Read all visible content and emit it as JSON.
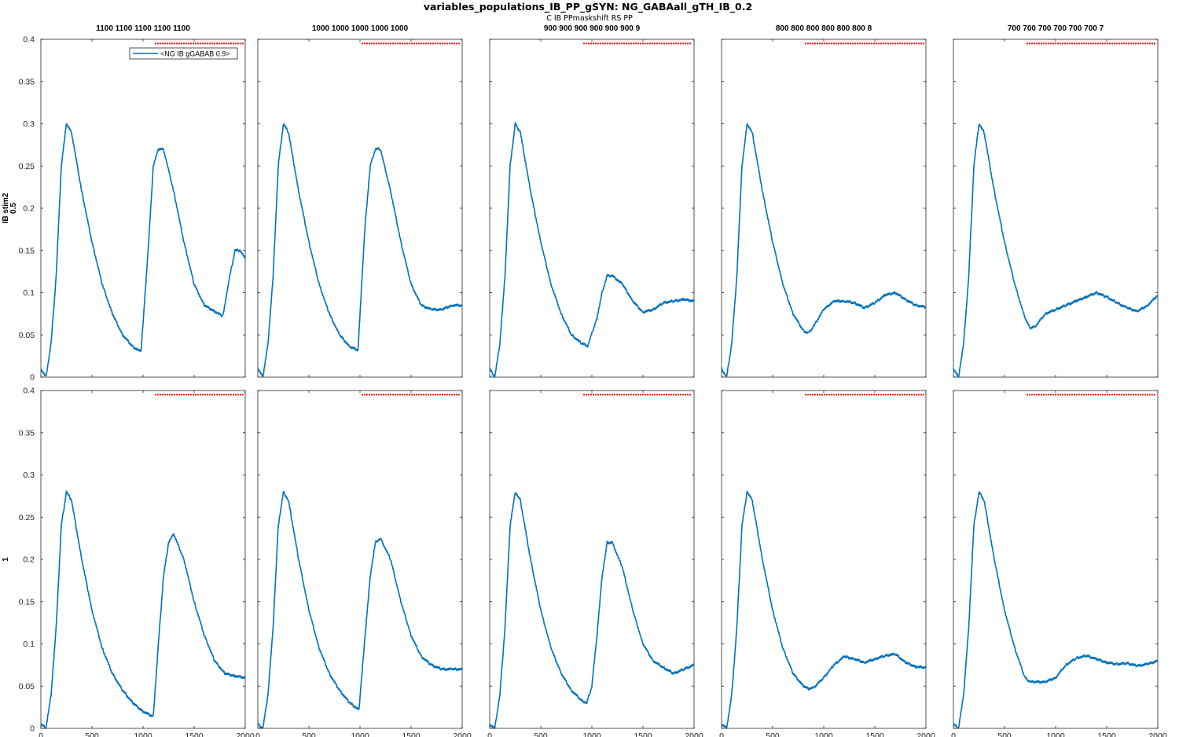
{
  "figure": {
    "title": "variables_populations_IB_PP_gSYN: NG_GABAall_gTH_IB_0.2",
    "subtitle": "C IB PPmaskshift RS PP",
    "row_labels": [
      [
        "IB stim2",
        "0.5"
      ],
      [
        "1"
      ]
    ],
    "column_titles": [
      "1100 1100 1100 1100 1100",
      "1000 1000 1000 1000 1000",
      "900 900 900 900 900 900 9",
      "800 800 800 800 800 800 8",
      "700 700 700 700 700 700 7"
    ],
    "legend_label": "<NG IB gGABAB 0.9>",
    "colors": {
      "line": "#0072bd",
      "marker": "#ff0000",
      "axis": "#262626"
    }
  },
  "chart_data": [
    {
      "type": "line",
      "row": 0,
      "col": 0,
      "title": "1100 1100 1100 1100 1100",
      "ylabel": "IB stim2 0.5",
      "xlim": [
        0,
        2000
      ],
      "ylim": [
        0,
        0.4
      ],
      "legend": "top-right",
      "marker_band": {
        "y": 0.395,
        "x_start": 1100,
        "x_end": 2000
      },
      "series": [
        {
          "name": "<NG IB gGABAB 0.9>",
          "x": [
            0,
            50,
            100,
            150,
            200,
            250,
            300,
            400,
            500,
            600,
            700,
            800,
            900,
            980,
            1050,
            1100,
            1150,
            1200,
            1300,
            1400,
            1500,
            1600,
            1700,
            1780,
            1850,
            1900,
            1950,
            2000
          ],
          "y": [
            0.01,
            0,
            0.04,
            0.12,
            0.25,
            0.3,
            0.29,
            0.22,
            0.16,
            0.11,
            0.075,
            0.05,
            0.036,
            0.03,
            0.15,
            0.25,
            0.27,
            0.27,
            0.22,
            0.16,
            0.11,
            0.085,
            0.078,
            0.072,
            0.12,
            0.15,
            0.15,
            0.14
          ]
        }
      ]
    },
    {
      "type": "line",
      "row": 0,
      "col": 1,
      "title": "1000 1000 1000 1000 1000",
      "xlim": [
        0,
        2000
      ],
      "ylim": [
        0,
        0.4
      ],
      "marker_band": {
        "y": 0.395,
        "x_start": 1000,
        "x_end": 2000
      },
      "series": [
        {
          "x": [
            0,
            50,
            100,
            150,
            200,
            250,
            300,
            400,
            500,
            600,
            700,
            800,
            900,
            980,
            1050,
            1100,
            1150,
            1200,
            1300,
            1400,
            1500,
            1600,
            1700,
            1800,
            1900,
            2000
          ],
          "y": [
            0.01,
            0,
            0.04,
            0.12,
            0.25,
            0.3,
            0.29,
            0.22,
            0.16,
            0.11,
            0.075,
            0.05,
            0.036,
            0.032,
            0.18,
            0.25,
            0.27,
            0.27,
            0.22,
            0.16,
            0.11,
            0.085,
            0.08,
            0.08,
            0.085,
            0.085
          ]
        }
      ]
    },
    {
      "type": "line",
      "row": 0,
      "col": 2,
      "title": "900 900 900 900 900 900 9",
      "xlim": [
        0,
        2000
      ],
      "ylim": [
        0,
        0.4
      ],
      "marker_band": {
        "y": 0.395,
        "x_start": 900,
        "x_end": 2000
      },
      "series": [
        {
          "x": [
            0,
            50,
            100,
            150,
            200,
            250,
            300,
            400,
            500,
            600,
            700,
            800,
            900,
            960,
            1050,
            1100,
            1150,
            1200,
            1300,
            1400,
            1500,
            1600,
            1700,
            1800,
            1900,
            2000
          ],
          "y": [
            0.01,
            0,
            0.04,
            0.12,
            0.25,
            0.3,
            0.29,
            0.22,
            0.16,
            0.11,
            0.075,
            0.05,
            0.04,
            0.037,
            0.07,
            0.1,
            0.12,
            0.12,
            0.11,
            0.09,
            0.077,
            0.08,
            0.088,
            0.09,
            0.092,
            0.09
          ]
        }
      ]
    },
    {
      "type": "line",
      "row": 0,
      "col": 3,
      "title": "800 800 800 800 800 800 8",
      "xlim": [
        0,
        2000
      ],
      "ylim": [
        0,
        0.4
      ],
      "marker_band": {
        "y": 0.395,
        "x_start": 800,
        "x_end": 2000
      },
      "series": [
        {
          "x": [
            0,
            50,
            100,
            150,
            200,
            250,
            300,
            400,
            500,
            600,
            700,
            800,
            850,
            900,
            1000,
            1100,
            1200,
            1300,
            1400,
            1500,
            1600,
            1700,
            1800,
            1900,
            2000
          ],
          "y": [
            0.01,
            0,
            0.04,
            0.12,
            0.25,
            0.3,
            0.29,
            0.22,
            0.16,
            0.11,
            0.075,
            0.055,
            0.052,
            0.06,
            0.08,
            0.09,
            0.09,
            0.088,
            0.082,
            0.088,
            0.097,
            0.1,
            0.092,
            0.085,
            0.083
          ]
        }
      ]
    },
    {
      "type": "line",
      "row": 0,
      "col": 4,
      "title": "700 700 700 700 700 700 7",
      "xlim": [
        0,
        2000
      ],
      "ylim": [
        0,
        0.4
      ],
      "marker_band": {
        "y": 0.395,
        "x_start": 700,
        "x_end": 2000
      },
      "series": [
        {
          "x": [
            0,
            50,
            100,
            150,
            200,
            250,
            300,
            400,
            500,
            600,
            700,
            750,
            800,
            900,
            1000,
            1100,
            1200,
            1300,
            1400,
            1500,
            1600,
            1700,
            1800,
            1900,
            2000
          ],
          "y": [
            0.01,
            0,
            0.04,
            0.12,
            0.25,
            0.3,
            0.29,
            0.22,
            0.16,
            0.11,
            0.07,
            0.058,
            0.06,
            0.075,
            0.08,
            0.085,
            0.09,
            0.095,
            0.1,
            0.095,
            0.088,
            0.082,
            0.078,
            0.085,
            0.097
          ]
        }
      ]
    },
    {
      "type": "line",
      "row": 1,
      "col": 0,
      "ylabel": "1",
      "xlim": [
        0,
        2000
      ],
      "ylim": [
        0,
        0.4
      ],
      "marker_band": {
        "y": 0.395,
        "x_start": 1100,
        "x_end": 2000
      },
      "series": [
        {
          "x": [
            0,
            50,
            100,
            150,
            200,
            250,
            300,
            400,
            500,
            600,
            700,
            800,
            900,
            1000,
            1100,
            1150,
            1200,
            1250,
            1300,
            1400,
            1500,
            1600,
            1700,
            1800,
            1900,
            2000
          ],
          "y": [
            0.005,
            0,
            0.04,
            0.12,
            0.24,
            0.28,
            0.27,
            0.2,
            0.14,
            0.095,
            0.065,
            0.045,
            0.03,
            0.02,
            0.014,
            0.1,
            0.18,
            0.22,
            0.23,
            0.2,
            0.15,
            0.11,
            0.08,
            0.065,
            0.062,
            0.06
          ]
        }
      ]
    },
    {
      "type": "line",
      "row": 1,
      "col": 1,
      "xlim": [
        0,
        2000
      ],
      "ylim": [
        0,
        0.4
      ],
      "marker_band": {
        "y": 0.395,
        "x_start": 1000,
        "x_end": 2000
      },
      "series": [
        {
          "x": [
            0,
            50,
            100,
            150,
            200,
            250,
            300,
            400,
            500,
            600,
            700,
            800,
            900,
            990,
            1050,
            1100,
            1150,
            1200,
            1300,
            1400,
            1500,
            1600,
            1700,
            1800,
            1900,
            2000
          ],
          "y": [
            0.005,
            0,
            0.04,
            0.12,
            0.24,
            0.28,
            0.27,
            0.2,
            0.14,
            0.095,
            0.065,
            0.045,
            0.03,
            0.022,
            0.11,
            0.18,
            0.22,
            0.225,
            0.2,
            0.15,
            0.11,
            0.085,
            0.075,
            0.07,
            0.07,
            0.07
          ]
        }
      ]
    },
    {
      "type": "line",
      "row": 1,
      "col": 2,
      "xlim": [
        0,
        2000
      ],
      "ylim": [
        0,
        0.4
      ],
      "marker_band": {
        "y": 0.395,
        "x_start": 900,
        "x_end": 2000
      },
      "series": [
        {
          "x": [
            0,
            50,
            100,
            150,
            200,
            250,
            300,
            400,
            500,
            600,
            700,
            800,
            900,
            950,
            1000,
            1050,
            1100,
            1150,
            1200,
            1300,
            1400,
            1500,
            1600,
            1700,
            1800,
            1900,
            2000
          ],
          "y": [
            0.005,
            0,
            0.04,
            0.12,
            0.24,
            0.28,
            0.27,
            0.2,
            0.14,
            0.095,
            0.065,
            0.045,
            0.033,
            0.03,
            0.05,
            0.11,
            0.18,
            0.22,
            0.22,
            0.19,
            0.14,
            0.1,
            0.08,
            0.072,
            0.065,
            0.07,
            0.075
          ]
        }
      ]
    },
    {
      "type": "line",
      "row": 1,
      "col": 3,
      "xlim": [
        0,
        2000
      ],
      "ylim": [
        0,
        0.4
      ],
      "marker_band": {
        "y": 0.395,
        "x_start": 800,
        "x_end": 2000
      },
      "series": [
        {
          "x": [
            0,
            50,
            100,
            150,
            200,
            250,
            300,
            400,
            500,
            600,
            700,
            800,
            850,
            900,
            1000,
            1100,
            1200,
            1300,
            1400,
            1500,
            1600,
            1700,
            1800,
            1900,
            2000
          ],
          "y": [
            0.005,
            0,
            0.04,
            0.12,
            0.24,
            0.28,
            0.27,
            0.2,
            0.14,
            0.095,
            0.065,
            0.05,
            0.047,
            0.048,
            0.06,
            0.075,
            0.085,
            0.082,
            0.078,
            0.082,
            0.086,
            0.088,
            0.078,
            0.073,
            0.072
          ]
        }
      ]
    },
    {
      "type": "line",
      "row": 1,
      "col": 4,
      "xlim": [
        0,
        2000
      ],
      "ylim": [
        0,
        0.4
      ],
      "marker_band": {
        "y": 0.395,
        "x_start": 700,
        "x_end": 2000
      },
      "series": [
        {
          "x": [
            0,
            50,
            100,
            150,
            200,
            250,
            300,
            400,
            500,
            600,
            700,
            750,
            800,
            900,
            1000,
            1100,
            1200,
            1300,
            1400,
            1500,
            1600,
            1700,
            1800,
            1900,
            2000
          ],
          "y": [
            0.005,
            0,
            0.04,
            0.12,
            0.24,
            0.28,
            0.27,
            0.2,
            0.14,
            0.095,
            0.06,
            0.055,
            0.055,
            0.055,
            0.06,
            0.075,
            0.083,
            0.086,
            0.082,
            0.078,
            0.076,
            0.077,
            0.074,
            0.076,
            0.08
          ]
        }
      ]
    }
  ]
}
